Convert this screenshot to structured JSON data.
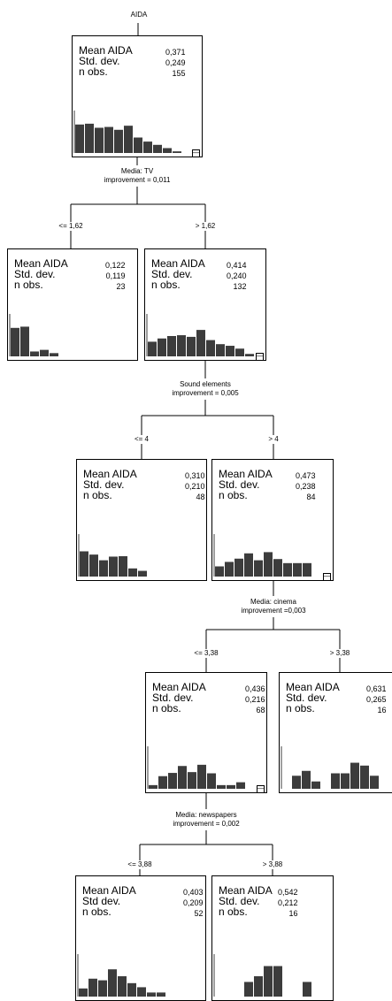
{
  "title": "AIDA",
  "stat_labels": {
    "mean": "Mean AIDA",
    "std": "Std. dev.",
    "std_alt": "Std dev.",
    "n": "n obs."
  },
  "nodes": [
    {
      "id": "root",
      "mean": "0,371",
      "std": "0,249",
      "n": "155",
      "hist": [
        0.7,
        0.72,
        0.62,
        0.64,
        0.57,
        0.67,
        0.38,
        0.28,
        0.2,
        0.12,
        0.04
      ],
      "collapse": true
    },
    {
      "id": "n1",
      "mean": "0,122",
      "std": "0,119",
      "n": "23",
      "hist": [
        0.7,
        0.73,
        0.12,
        0.16,
        0.08,
        0,
        0,
        0,
        0,
        0,
        0
      ],
      "collapse": false
    },
    {
      "id": "n2",
      "mean": "0,414",
      "std": "0,240",
      "n": "132",
      "hist": [
        0.36,
        0.44,
        0.5,
        0.52,
        0.48,
        0.65,
        0.4,
        0.3,
        0.26,
        0.19,
        0.06
      ],
      "collapse": true
    },
    {
      "id": "n21",
      "mean": "0,310",
      "std": "0,210",
      "n": "48",
      "hist": [
        0.62,
        0.54,
        0.4,
        0.49,
        0.5,
        0.2,
        0.14,
        0,
        0,
        0,
        0
      ],
      "collapse": false
    },
    {
      "id": "n22",
      "mean": "0,473",
      "std": "0,238",
      "n": "84",
      "hist": [
        0.25,
        0.36,
        0.44,
        0.57,
        0.4,
        0.6,
        0.43,
        0.33,
        0.33,
        0.33,
        0
      ],
      "collapse": true
    },
    {
      "id": "n221",
      "mean": "0,436",
      "std": "0,216",
      "n": "68",
      "hist": [
        0.09,
        0.31,
        0.39,
        0.56,
        0.41,
        0.59,
        0.38,
        0.09,
        0.09,
        0.16,
        0
      ],
      "collapse": true
    },
    {
      "id": "n222",
      "mean": "0,631",
      "std": "0,265",
      "n": "16",
      "hist": [
        0,
        0.32,
        0.44,
        0.18,
        0,
        0.38,
        0.38,
        0.64,
        0.57,
        0.32,
        0
      ],
      "collapse": false
    },
    {
      "id": "n2211",
      "mean": "0,403",
      "std": "0,209",
      "n": "52",
      "hist": [
        0.2,
        0.44,
        0.4,
        0.67,
        0.5,
        0.33,
        0.23,
        0.1,
        0.1,
        0,
        0
      ],
      "collapse": false
    },
    {
      "id": "n2212",
      "mean": "0,542",
      "std": "0,212",
      "n": "16",
      "hist": [
        0,
        0,
        0,
        0.36,
        0.5,
        0.75,
        0.75,
        0,
        0,
        0.36,
        0
      ],
      "collapse": false
    }
  ],
  "splits": [
    {
      "variable": "Media: TV",
      "improvement": "improvement = 0,011",
      "left": "<= 1,62",
      "right": "> 1,62"
    },
    {
      "variable": "Sound elements",
      "improvement": "improvement = 0,005",
      "left": "<= 4",
      "right": "> 4"
    },
    {
      "variable": "Media: cinema",
      "improvement": "improvement =0,003",
      "left": "<= 3,38",
      "right": "> 3,38"
    },
    {
      "variable": "Media: newspapers",
      "improvement": "improvement = 0,002",
      "left": "<= 3,88",
      "right": "> 3,88"
    }
  ],
  "colors": {
    "bar": "#3c3c3c",
    "line": "#000000",
    "background": "#ffffff"
  }
}
